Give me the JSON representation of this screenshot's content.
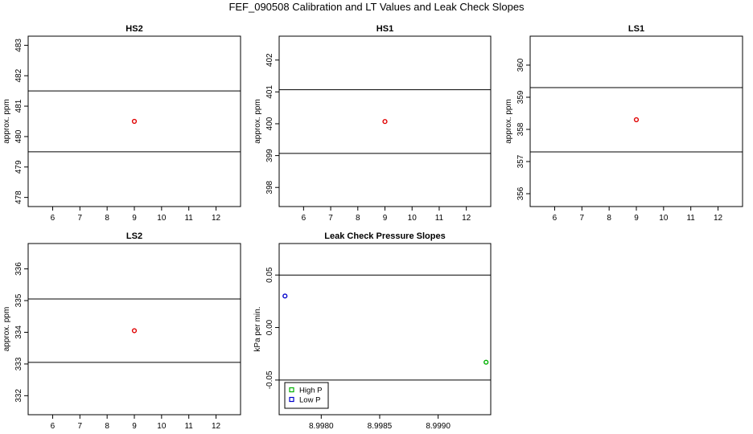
{
  "title": "FEF_090508  Calibration and LT Values and Leak Check Slopes",
  "chart_data": [
    {
      "type": "scatter",
      "title": "HS2",
      "ylabel": "approx. ppm",
      "xlim": [
        5.1,
        12.9
      ],
      "ylim": [
        477.7,
        483.3
      ],
      "xticks": [
        6,
        7,
        8,
        9,
        10,
        11,
        12
      ],
      "yticks": [
        478,
        479,
        480,
        481,
        482,
        483
      ],
      "hlines": [
        479.5,
        481.5
      ],
      "points": [
        {
          "x": 9,
          "y": 480.5,
          "color": "#e00000"
        }
      ]
    },
    {
      "type": "scatter",
      "title": "HS1",
      "ylabel": "approx. ppm",
      "xlim": [
        5.1,
        12.9
      ],
      "ylim": [
        397.4,
        402.75
      ],
      "xticks": [
        6,
        7,
        8,
        9,
        10,
        11,
        12
      ],
      "yticks": [
        398,
        399,
        400,
        401,
        402
      ],
      "hlines": [
        399.07,
        401.07
      ],
      "points": [
        {
          "x": 9,
          "y": 400.07,
          "color": "#e00000"
        }
      ]
    },
    {
      "type": "scatter",
      "title": "LS1",
      "ylabel": "approx. ppm",
      "xlim": [
        5.1,
        12.9
      ],
      "ylim": [
        355.6,
        360.9
      ],
      "xticks": [
        6,
        7,
        8,
        9,
        10,
        11,
        12
      ],
      "yticks": [
        356,
        357,
        358,
        359,
        360
      ],
      "hlines": [
        357.3,
        359.3
      ],
      "points": [
        {
          "x": 9,
          "y": 358.3,
          "color": "#e00000"
        }
      ]
    },
    {
      "type": "scatter",
      "title": "LS2",
      "ylabel": "approx. ppm",
      "xlim": [
        5.1,
        12.9
      ],
      "ylim": [
        331.4,
        336.8
      ],
      "xticks": [
        6,
        7,
        8,
        9,
        10,
        11,
        12
      ],
      "yticks": [
        332,
        333,
        334,
        335,
        336
      ],
      "hlines": [
        333.05,
        335.05
      ],
      "points": [
        {
          "x": 9,
          "y": 334.05,
          "color": "#e00000"
        }
      ]
    },
    {
      "type": "scatter",
      "title": "Leak Check Pressure Slopes",
      "ylabel": "kPa per min.",
      "xlim": [
        8.99764,
        8.99945
      ],
      "ylim": [
        -0.083,
        0.08
      ],
      "xticks": [
        8.998,
        8.9985,
        8.999
      ],
      "xtick_labels": [
        "8.9980",
        "8.9985",
        "8.9990"
      ],
      "yticks": [
        -0.05,
        0,
        0.05
      ],
      "ytick_labels": [
        "-0.05",
        "0.00",
        "0.05"
      ],
      "hlines": [
        -0.05,
        0.05
      ],
      "points": [
        {
          "x": 8.99769,
          "y": 0.03,
          "color": "#0000cc"
        },
        {
          "x": 8.99941,
          "y": -0.033,
          "color": "#00b000"
        }
      ],
      "legend": {
        "position": "bottom-left",
        "entries": [
          {
            "label": "High P",
            "color": "#00b000"
          },
          {
            "label": "Low P",
            "color": "#0000cc"
          }
        ]
      }
    }
  ]
}
